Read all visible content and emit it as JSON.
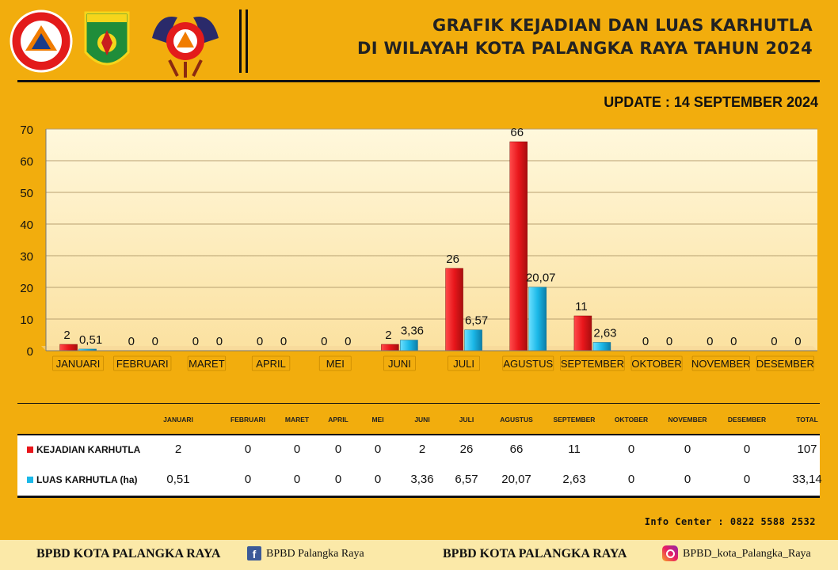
{
  "header": {
    "title_line1": "GRAFIK KEJADIAN DAN LUAS KARHUTLA",
    "title_line2": "DI WILAYAH KOTA PALANGKA RAYA TAHUN 2024",
    "update": "UPDATE : 14 SEPTEMBER 2024",
    "logos": [
      "bpbd-logo",
      "palangka-raya-crest",
      "pusdalops-logo"
    ]
  },
  "chart_data": {
    "type": "bar",
    "categories": [
      "JANUARI",
      "FEBRUARI",
      "MARET",
      "APRIL",
      "MEI",
      "JUNI",
      "JULI",
      "AGUSTUS",
      "SEPTEMBER",
      "OKTOBER",
      "NOVEMBER",
      "DESEMBER"
    ],
    "series": [
      {
        "name": "KEJADIAN KARHUTLA",
        "color": "#e8161b",
        "values": [
          2,
          0,
          0,
          0,
          0,
          2,
          26,
          66,
          11,
          0,
          0,
          0
        ],
        "labels": [
          "2",
          "0",
          "0",
          "0",
          "0",
          "2",
          "26",
          "66",
          "11",
          "0",
          "0",
          "0"
        ]
      },
      {
        "name": "LUAS KARHUTLA (ha)",
        "color": "#1bb8e8",
        "values": [
          0.51,
          0,
          0,
          0,
          0,
          3.36,
          6.57,
          20.07,
          2.63,
          0,
          0,
          0
        ],
        "labels": [
          "0,51",
          "0",
          "0",
          "0",
          "0",
          "3,36",
          "6,57",
          "20,07",
          "2,63",
          "0",
          "0",
          "0"
        ]
      }
    ],
    "yticks": [
      0,
      10,
      20,
      30,
      40,
      50,
      60,
      70
    ],
    "ylim": [
      0,
      70
    ],
    "grid": true
  },
  "table": {
    "headers": [
      "JANUARI",
      "FEBRUARI",
      "MARET",
      "APRIL",
      "MEI",
      "JUNI",
      "JULI",
      "AGUSTUS",
      "SEPTEMBER",
      "OKTOBER",
      "NOVEMBER",
      "DESEMBER",
      "TOTAL"
    ],
    "rows": [
      {
        "label": "KEJADIAN KARHUTLA",
        "color": "#e8161b",
        "values": [
          "2",
          "0",
          "0",
          "0",
          "0",
          "2",
          "26",
          "66",
          "11",
          "0",
          "0",
          "0",
          "107"
        ]
      },
      {
        "label": "LUAS KARHUTLA (ha)",
        "color": "#1bb8e8",
        "values": [
          "0,51",
          "0",
          "0",
          "0",
          "0",
          "3,36",
          "6,57",
          "20,07",
          "2,63",
          "0",
          "0",
          "0",
          "33,14"
        ]
      }
    ]
  },
  "info_center": "Info Center : 0822 5588 2532",
  "footer": {
    "org_left": "BPBD KOTA PALANGKA RAYA",
    "facebook": "BPBD Palangka Raya",
    "org_right": "BPBD KOTA PALANGKA RAYA",
    "instagram": "BPBD_kota_Palangka_Raya"
  }
}
